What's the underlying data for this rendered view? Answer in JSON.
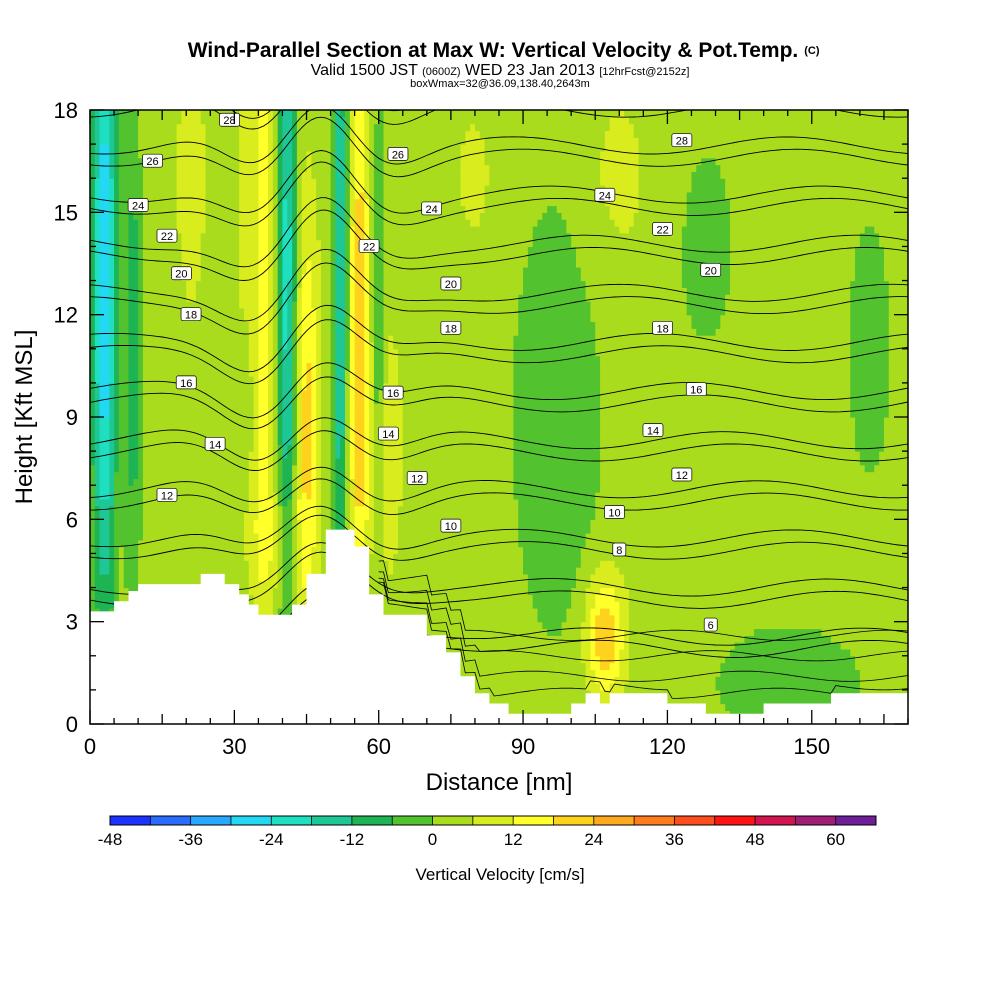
{
  "title": {
    "main": "Wind-Parallel Section at Max W: Vertical Velocity & Pot.Temp.",
    "copyright": "(C)",
    "valid_a": "Valid 1500 JST",
    "valid_z": "(0600Z)",
    "valid_b": "WED 23 Jan 2013",
    "valid_fcst": "[12hrFcst@2152z]",
    "box": "boxWmax=32@36.09,138.40,2643m"
  },
  "chart_data": {
    "type": "heatmap",
    "xlabel": "Distance [nm]",
    "ylabel": "Height [Kft MSL]",
    "xlim": [
      0,
      170
    ],
    "ylim": [
      0,
      18
    ],
    "x_ticks": [
      0,
      30,
      60,
      90,
      120,
      150
    ],
    "y_ticks": [
      0,
      3,
      6,
      9,
      12,
      15,
      18
    ],
    "grid": false,
    "colorbar": {
      "label": "Vertical Velocity [cm/s]",
      "ticks": [
        -48,
        -36,
        -24,
        -12,
        0,
        12,
        24,
        36,
        48,
        60
      ],
      "levels": [
        -48,
        -42,
        -36,
        -30,
        -24,
        -18,
        -12,
        -6,
        0,
        6,
        12,
        18,
        24,
        30,
        36,
        42,
        48,
        54,
        60
      ],
      "colors": [
        "#1e32ff",
        "#2a6cff",
        "#28a8ff",
        "#22d8f2",
        "#1ee0c0",
        "#1ec896",
        "#1eb454",
        "#52c22e",
        "#aadc1e",
        "#d8ec1e",
        "#ffff2a",
        "#ffd21e",
        "#ffaa1e",
        "#ff7c1e",
        "#ff4e1e",
        "#ff1414",
        "#d21450",
        "#a01e78",
        "#6e1e96"
      ]
    },
    "background_w": 3,
    "w_features": [
      {
        "x": 3,
        "y": 13,
        "sx": 2.5,
        "sy": 10,
        "w": -33
      },
      {
        "x": 9,
        "y": 11,
        "sx": 1.5,
        "sy": 9,
        "w": -12
      },
      {
        "x": 21,
        "y": 16,
        "sx": 3,
        "sy": 4,
        "w": 7
      },
      {
        "x": 32,
        "y": 16,
        "sx": 1.5,
        "sy": 4,
        "w": 8
      },
      {
        "x": 36,
        "y": 13,
        "sx": 2,
        "sy": 9,
        "w": 14
      },
      {
        "x": 41,
        "y": 13,
        "sx": 2,
        "sy": 10,
        "w": -24
      },
      {
        "x": 45,
        "y": 9,
        "sx": 2.5,
        "sy": 6,
        "w": 17
      },
      {
        "x": 38,
        "y": 5.5,
        "sx": 6,
        "sy": 2,
        "w": 7
      },
      {
        "x": 52,
        "y": 13,
        "sx": 1.5,
        "sy": 10,
        "w": -22
      },
      {
        "x": 56,
        "y": 11,
        "sx": 2,
        "sy": 8,
        "w": 22
      },
      {
        "x": 60,
        "y": 12,
        "sx": 1.3,
        "sy": 6,
        "w": -10
      },
      {
        "x": 62,
        "y": 8,
        "sx": 3,
        "sy": 4,
        "w": 7
      },
      {
        "x": 107,
        "y": 2.6,
        "sx": 4,
        "sy": 1.8,
        "w": 21
      },
      {
        "x": 97,
        "y": 9,
        "sx": 10,
        "sy": 7,
        "w": -7
      },
      {
        "x": 145,
        "y": 1.2,
        "sx": 14,
        "sy": 1.6,
        "w": -9
      },
      {
        "x": 128,
        "y": 14,
        "sx": 10,
        "sy": 5,
        "w": -4
      },
      {
        "x": 162,
        "y": 11,
        "sx": 6,
        "sy": 5,
        "w": -5
      },
      {
        "x": 110,
        "y": 16,
        "sx": 8,
        "sy": 3,
        "w": 5
      },
      {
        "x": 80,
        "y": 16,
        "sx": 6,
        "sy": 3,
        "w": 4
      }
    ],
    "theta_levels": [
      6,
      8,
      10,
      12,
      14,
      16,
      18,
      20,
      22,
      24,
      26,
      28
    ],
    "contour_labels": [
      {
        "v": "28",
        "x": 29,
        "y": 17.7
      },
      {
        "v": "26",
        "x": 13,
        "y": 16.5
      },
      {
        "v": "24",
        "x": 10,
        "y": 15.2
      },
      {
        "v": "22",
        "x": 16,
        "y": 14.3
      },
      {
        "v": "20",
        "x": 19,
        "y": 13.2
      },
      {
        "v": "18",
        "x": 21,
        "y": 12.0
      },
      {
        "v": "16",
        "x": 20,
        "y": 10.0
      },
      {
        "v": "14",
        "x": 26,
        "y": 8.2
      },
      {
        "v": "12",
        "x": 16,
        "y": 6.7
      },
      {
        "v": "26",
        "x": 64,
        "y": 16.7
      },
      {
        "v": "24",
        "x": 71,
        "y": 15.1
      },
      {
        "v": "22",
        "x": 58,
        "y": 14.0
      },
      {
        "v": "20",
        "x": 75,
        "y": 12.9
      },
      {
        "v": "18",
        "x": 75,
        "y": 11.6
      },
      {
        "v": "16",
        "x": 63,
        "y": 9.7
      },
      {
        "v": "14",
        "x": 62,
        "y": 8.5
      },
      {
        "v": "12",
        "x": 68,
        "y": 7.2
      },
      {
        "v": "10",
        "x": 75,
        "y": 5.8
      },
      {
        "v": "28",
        "x": 123,
        "y": 17.1
      },
      {
        "v": "24",
        "x": 107,
        "y": 15.5
      },
      {
        "v": "22",
        "x": 119,
        "y": 14.5
      },
      {
        "v": "20",
        "x": 129,
        "y": 13.3
      },
      {
        "v": "18",
        "x": 119,
        "y": 11.6
      },
      {
        "v": "16",
        "x": 126,
        "y": 9.8
      },
      {
        "v": "14",
        "x": 117,
        "y": 8.6
      },
      {
        "v": "12",
        "x": 123,
        "y": 7.3
      },
      {
        "v": "10",
        "x": 109,
        "y": 6.2
      },
      {
        "v": "8",
        "x": 110,
        "y": 5.1
      },
      {
        "v": "6",
        "x": 129,
        "y": 2.9
      }
    ]
  }
}
